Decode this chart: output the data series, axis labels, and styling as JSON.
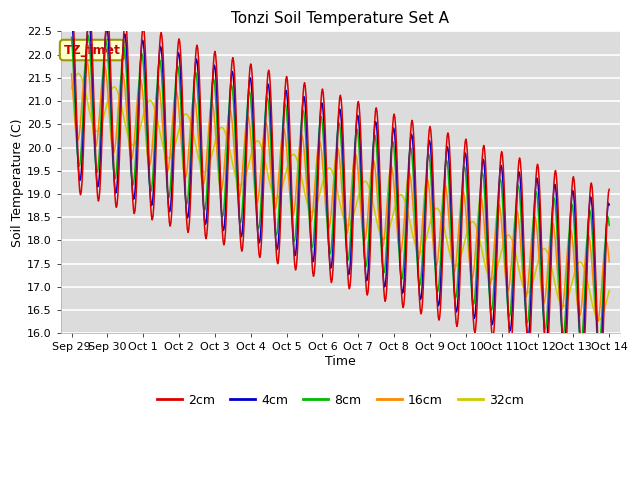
{
  "title": "Tonzi Soil Temperature Set A",
  "xlabel": "Time",
  "ylabel": "Soil Temperature (C)",
  "ylim": [
    16.0,
    22.5
  ],
  "legend_labels": [
    "2cm",
    "4cm",
    "8cm",
    "16cm",
    "32cm"
  ],
  "legend_colors": [
    "#dd0000",
    "#0000cc",
    "#00bb00",
    "#ff8800",
    "#cccc00"
  ],
  "xtick_labels": [
    "Sep 29",
    "Sep 30",
    "Oct 1",
    "Oct 2",
    "Oct 3",
    "Oct 4",
    "Oct 5",
    "Oct 6",
    "Oct 7",
    "Oct 8",
    "Oct 9",
    "Oct 10",
    "Oct 11",
    "Oct 12",
    "Oct 13",
    "Oct 14"
  ],
  "annotation_text": "TZ_fmet",
  "annotation_color": "#cc0000",
  "annotation_bg": "#ffffcc",
  "annotation_edge": "#999900",
  "plot_bg": "#dcdcdc",
  "fig_bg": "#ffffff",
  "grid_color": "#f0f0f0",
  "title_fontsize": 11,
  "label_fontsize": 9,
  "tick_fontsize": 8
}
